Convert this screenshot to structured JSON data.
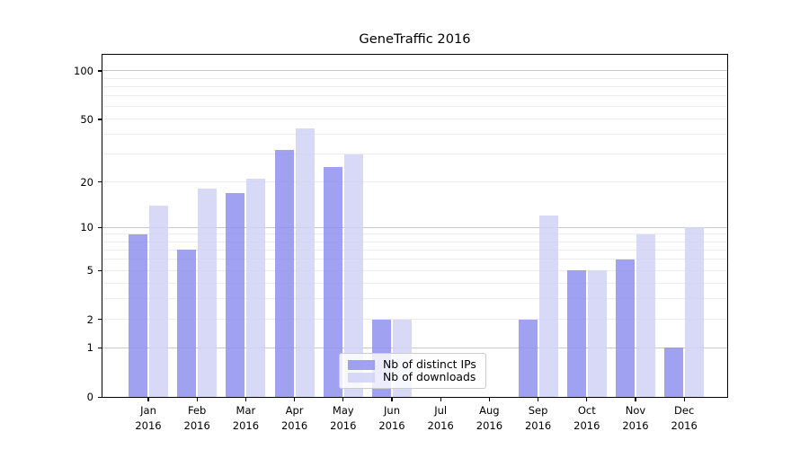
{
  "chart_data": {
    "type": "bar",
    "title": "GeneTraffic 2016",
    "xlabel": "",
    "ylabel": "",
    "x_year": "2016",
    "x_months": [
      "Jan",
      "Feb",
      "Mar",
      "Apr",
      "May",
      "Jun",
      "Jul",
      "Aug",
      "Sep",
      "Oct",
      "Nov",
      "Dec"
    ],
    "series": [
      {
        "name": "Nb of distinct IPs",
        "color": "#9090ee",
        "values": [
          9,
          7,
          17,
          32,
          25,
          2,
          0,
          0,
          2,
          5,
          6,
          1
        ]
      },
      {
        "name": "Nb of downloads",
        "color": "#d1d1f6",
        "values": [
          14,
          18,
          21,
          44,
          30,
          2,
          0,
          0,
          12,
          5,
          9,
          10
        ]
      }
    ],
    "yscale": "log1p",
    "ylim": [
      0,
      128
    ],
    "ytick_values": [
      0,
      1,
      2,
      5,
      10,
      20,
      50,
      100
    ],
    "ytick_labels": [
      "0",
      "1",
      "2",
      "5",
      "10",
      "20",
      "50",
      "100"
    ],
    "minor_gridline_values": [
      2,
      3,
      4,
      5,
      6,
      7,
      8,
      9,
      20,
      30,
      40,
      50,
      60,
      70,
      80,
      90
    ],
    "major_gridline_values": [
      1,
      10,
      100
    ],
    "grid": true,
    "legend_position": "lower-center-inside",
    "colors": {
      "minor_gridline": "#ececec",
      "major_gridline": "#c8c8c8",
      "spine": "#000000",
      "text": "#000000",
      "legend_border": "#cccccc",
      "legend_bg": "#ffffff"
    }
  }
}
